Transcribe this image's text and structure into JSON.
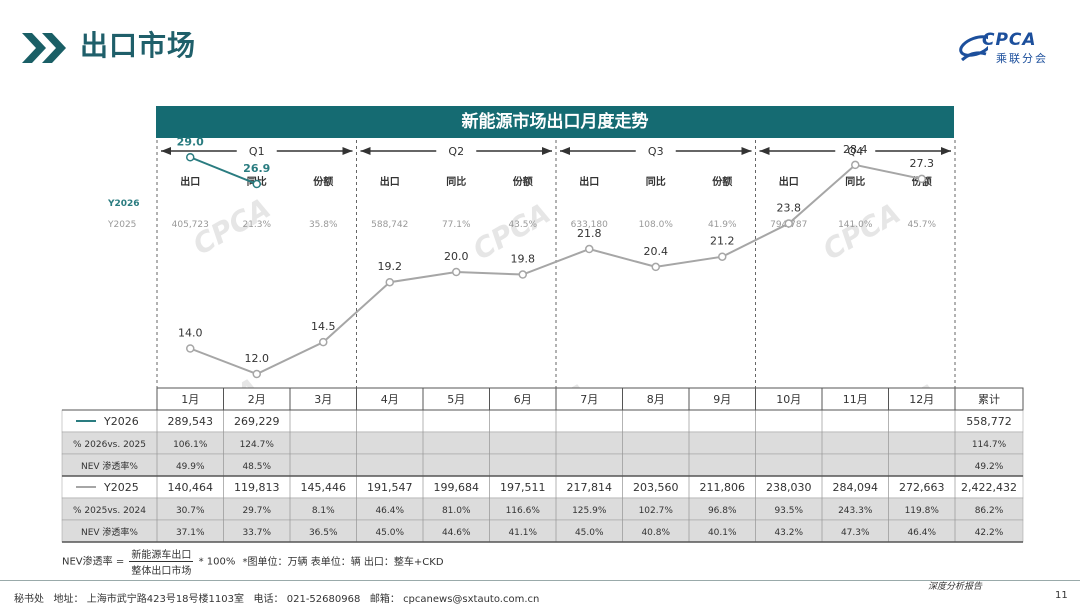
{
  "page": {
    "title": "出口市场",
    "logo_text": "CPCA",
    "logo_sub": "乘联分会",
    "page_number": "11",
    "footer_right": "深度分析报告",
    "footer": {
      "office": "秘书处",
      "address_label": "地址：",
      "address": "上海市武宁路423号18号楼1103室",
      "phone_label": "电话：",
      "phone": "021-52680968",
      "email_label": "邮箱：",
      "email": "cpcanews@sxtauto.com.cn"
    },
    "formula": {
      "lhs": "NEV渗透率 =",
      "numerator": "新能源车出口",
      "denominator": "整体出口市场",
      "factor": "* 100%",
      "notes": "*图单位：万辆    表单位：辆      出口：整车+CKD"
    },
    "watermark": "CPCA"
  },
  "chart_data": {
    "type": "line",
    "title": "新能源市场出口月度走势",
    "quarters": [
      "Q1",
      "Q2",
      "Q3",
      "Q4"
    ],
    "quarter_cols": [
      "出口",
      "同比",
      "份额"
    ],
    "quarter_row_labels": [
      "Y2026",
      "Y2025"
    ],
    "quarter_stats_2025": [
      [
        "405,723",
        "21.3%",
        "35.8%"
      ],
      [
        "588,742",
        "77.1%",
        "43.5%"
      ],
      [
        "633,180",
        "108.0%",
        "41.9%"
      ],
      [
        "794,787",
        "141.0%",
        "45.7%"
      ]
    ],
    "categories": [
      "1月",
      "2月",
      "3月",
      "4月",
      "5月",
      "6月",
      "7月",
      "8月",
      "9月",
      "10月",
      "11月",
      "12月"
    ],
    "series": [
      {
        "name": "Y2026",
        "color": "#2a7c80",
        "values": [
          29.0,
          26.9,
          null,
          null,
          null,
          null,
          null,
          null,
          null,
          null,
          null,
          null
        ],
        "labels": [
          "29.0",
          "26.9"
        ]
      },
      {
        "name": "Y2025",
        "color": "#a6a6a6",
        "values": [
          14.0,
          12.0,
          14.5,
          19.2,
          20.0,
          19.8,
          21.8,
          20.4,
          21.2,
          23.8,
          28.4,
          27.3
        ],
        "labels": [
          "14.0",
          "12.0",
          "14.5",
          "19.2",
          "20.0",
          "19.8",
          "21.8",
          "20.4",
          "21.2",
          "23.8",
          "28.4",
          "27.3"
        ]
      }
    ],
    "unit": "万辆",
    "ylim": [
      10,
      30
    ],
    "table": {
      "total_header": "累计",
      "rows": [
        {
          "label": "Y2026",
          "line": "#2a7c80",
          "cells": [
            "289,543",
            "269,229",
            "",
            "",
            "",
            "",
            "",
            "",
            "",
            "",
            "",
            ""
          ],
          "total": "558,772",
          "shaded": false
        },
        {
          "label": "% 2026vs. 2025",
          "cells": [
            "106.1%",
            "124.7%",
            "",
            "",
            "",
            "",
            "",
            "",
            "",
            "",
            "",
            ""
          ],
          "total": "114.7%",
          "shaded": true
        },
        {
          "label": "NEV 渗透率%",
          "cells": [
            "49.9%",
            "48.5%",
            "",
            "",
            "",
            "",
            "",
            "",
            "",
            "",
            "",
            ""
          ],
          "total": "49.2%",
          "shaded": true
        },
        {
          "label": "Y2025",
          "line": "#a6a6a6",
          "cells": [
            "140,464",
            "119,813",
            "145,446",
            "191,547",
            "199,684",
            "197,511",
            "217,814",
            "203,560",
            "211,806",
            "238,030",
            "284,094",
            "272,663"
          ],
          "total": "2,422,432",
          "shaded": false
        },
        {
          "label": "% 2025vs. 2024",
          "cells": [
            "30.7%",
            "29.7%",
            "8.1%",
            "46.4%",
            "81.0%",
            "116.6%",
            "125.9%",
            "102.7%",
            "96.8%",
            "93.5%",
            "243.3%",
            "119.8%"
          ],
          "total": "86.2%",
          "shaded": true
        },
        {
          "label": "NEV 渗透率%",
          "cells": [
            "37.1%",
            "33.7%",
            "36.5%",
            "45.0%",
            "44.6%",
            "41.1%",
            "45.0%",
            "40.8%",
            "40.1%",
            "43.2%",
            "47.3%",
            "46.4%"
          ],
          "total": "42.2%",
          "shaded": true
        }
      ]
    }
  }
}
